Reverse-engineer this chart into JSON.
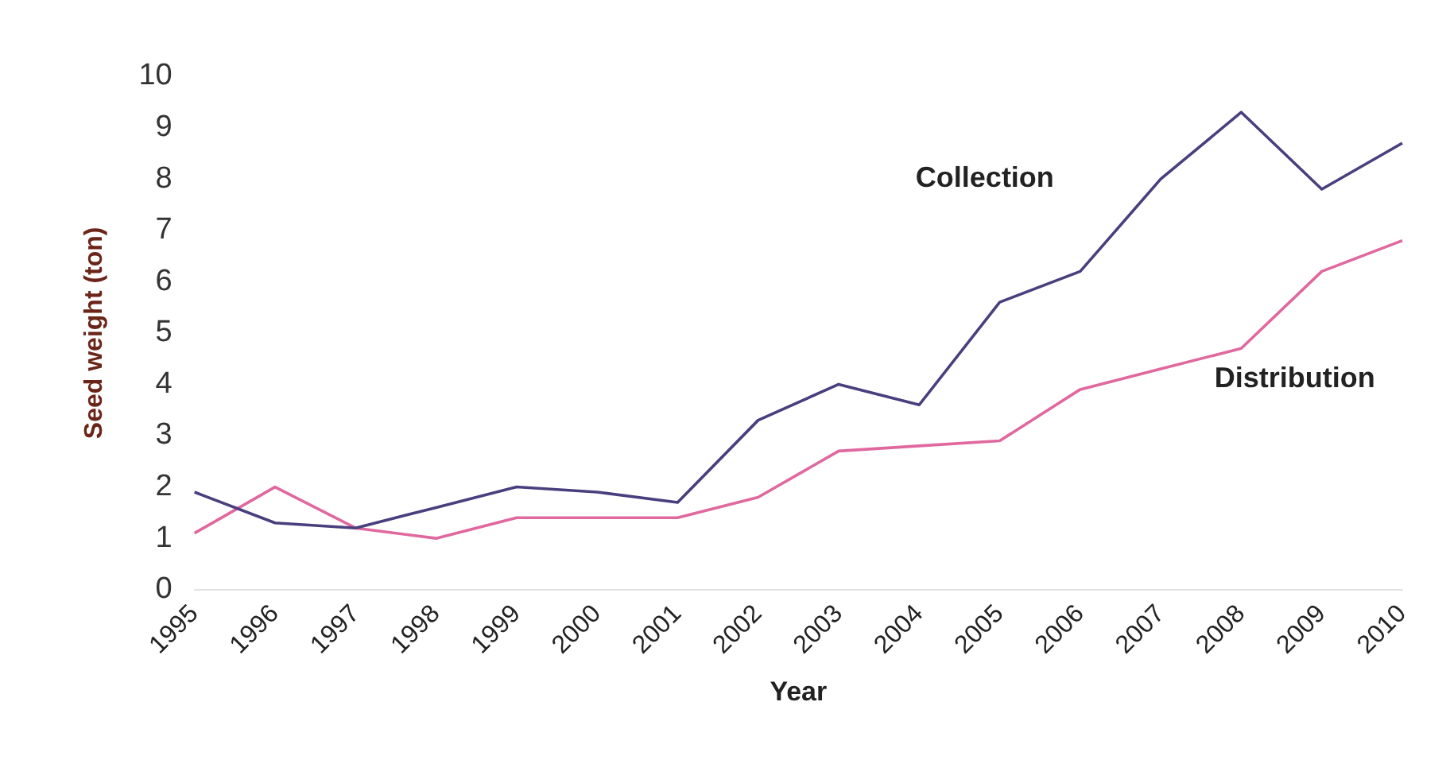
{
  "chart_data": {
    "type": "line",
    "xlabel": "Year",
    "ylabel": "Seed weight (ton)",
    "categories": [
      "1995",
      "1996",
      "1997",
      "1998",
      "1999",
      "2000",
      "2001",
      "2002",
      "2003",
      "2004",
      "2005",
      "2006",
      "2007",
      "2008",
      "2009",
      "2010"
    ],
    "series": [
      {
        "name": "Collection",
        "color": "#4a3f7e",
        "values": [
          1.9,
          1.3,
          1.2,
          1.6,
          2.0,
          1.9,
          1.7,
          3.3,
          4.0,
          3.6,
          5.6,
          6.2,
          8.0,
          9.3,
          7.8,
          8.7
        ]
      },
      {
        "name": "Distribution",
        "color": "#e0689f",
        "values": [
          1.1,
          2.0,
          1.2,
          1.0,
          1.4,
          1.4,
          1.4,
          1.8,
          2.7,
          2.8,
          2.9,
          3.9,
          4.3,
          4.7,
          6.2,
          6.8
        ]
      }
    ],
    "ylim": [
      0,
      10
    ],
    "yticks": [
      0,
      1,
      2,
      3,
      4,
      5,
      6,
      7,
      8,
      9,
      10
    ],
    "grid": false,
    "legend": false,
    "marker": "none",
    "line_style": "solid"
  }
}
